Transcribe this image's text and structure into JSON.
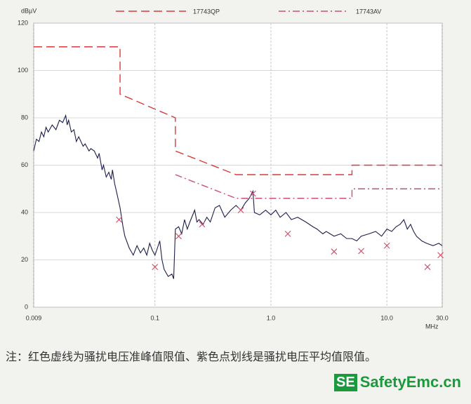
{
  "chart_data": {
    "type": "line",
    "log_x": true,
    "grid": true,
    "ylabel": "dBµV",
    "xlabel": "MHz",
    "xlim": [
      0.009,
      30
    ],
    "ylim": [
      0,
      120
    ],
    "xticks": [
      0.009,
      0.1,
      {
        "value": 1,
        "label": "1.0"
      },
      {
        "value": 10,
        "label": "10.0"
      },
      {
        "value": 30,
        "label": "30.0"
      }
    ],
    "yticks": [
      0,
      20,
      40,
      60,
      80,
      100,
      120
    ],
    "series": [
      {
        "name": "17743QP",
        "color": "#d63c3c",
        "style": "dashed",
        "x": [
          0.009,
          0.05,
          0.05,
          0.15,
          0.15,
          0.5,
          5,
          5,
          30
        ],
        "y": [
          110,
          110,
          90,
          80,
          66,
          56,
          56,
          60,
          60
        ]
      },
      {
        "name": "17743AV",
        "color": "#c9507e",
        "style": "dashdot",
        "x": [
          0.15,
          0.5,
          5,
          5,
          30
        ],
        "y": [
          56,
          46,
          46,
          50,
          50
        ]
      },
      {
        "color": "#1c1f4a",
        "style": "solid",
        "x": [
          0.009,
          0.0095,
          0.01,
          0.0105,
          0.011,
          0.0115,
          0.012,
          0.013,
          0.014,
          0.015,
          0.016,
          0.017,
          0.0175,
          0.018,
          0.019,
          0.02,
          0.021,
          0.022,
          0.024,
          0.025,
          0.027,
          0.028,
          0.03,
          0.032,
          0.033,
          0.035,
          0.036,
          0.038,
          0.04,
          0.042,
          0.043,
          0.045,
          0.047,
          0.05,
          0.053,
          0.055,
          0.06,
          0.065,
          0.07,
          0.075,
          0.08,
          0.085,
          0.09,
          0.095,
          0.1,
          0.105,
          0.11,
          0.115,
          0.12,
          0.13,
          0.14,
          0.145,
          0.15,
          0.16,
          0.17,
          0.18,
          0.19,
          0.2,
          0.22,
          0.23,
          0.24,
          0.26,
          0.28,
          0.3,
          0.33,
          0.36,
          0.4,
          0.45,
          0.5,
          0.55,
          0.6,
          0.65,
          0.7,
          0.72,
          0.8,
          0.9,
          1.0,
          1.1,
          1.2,
          1.35,
          1.5,
          1.7,
          2,
          2.3,
          2.5,
          2.8,
          3,
          3.5,
          4,
          4.5,
          5,
          5.5,
          6,
          7,
          8,
          9,
          10,
          11,
          12,
          13,
          14,
          15,
          16,
          17,
          18,
          20,
          22,
          25,
          28,
          30
        ],
        "y": [
          66,
          71,
          70,
          74,
          72,
          76,
          74,
          77,
          75,
          79,
          78,
          81,
          77,
          79,
          74,
          75,
          70,
          72,
          68,
          69,
          66,
          67,
          66,
          63,
          65,
          58,
          60,
          55,
          57,
          54,
          58,
          52,
          48,
          42,
          34,
          30,
          25,
          22,
          26,
          23,
          25,
          22,
          27,
          24,
          22,
          25,
          28,
          20,
          16,
          13,
          14,
          12,
          33,
          34,
          31,
          37,
          33,
          36,
          41,
          36,
          37,
          35,
          38,
          36,
          42,
          43,
          38,
          41,
          43,
          41,
          44,
          46,
          49,
          40,
          39,
          41,
          39,
          41,
          38,
          40,
          37,
          38,
          36,
          34,
          33,
          31,
          32,
          30,
          31,
          29,
          29,
          28,
          30,
          31,
          32,
          30,
          33,
          32,
          34,
          35,
          37,
          33,
          35,
          32,
          30,
          28,
          27,
          26,
          27,
          26
        ]
      },
      {
        "color": "#d0506a",
        "style": "markers",
        "x": [
          0.049,
          0.1,
          0.16,
          0.255,
          0.55,
          0.7,
          1.4,
          3.5,
          6,
          10,
          22.4,
          29
        ],
        "y": [
          37,
          17,
          30,
          35,
          41,
          48,
          31,
          23.5,
          23.7,
          26,
          17,
          22
        ]
      }
    ]
  },
  "caption": "注：红色虚线为骚扰电压准峰值限值、紫色点划线是骚扰电压平均值限值。",
  "logo": {
    "badge": "SE",
    "text": "SafetyEmc.cn"
  }
}
